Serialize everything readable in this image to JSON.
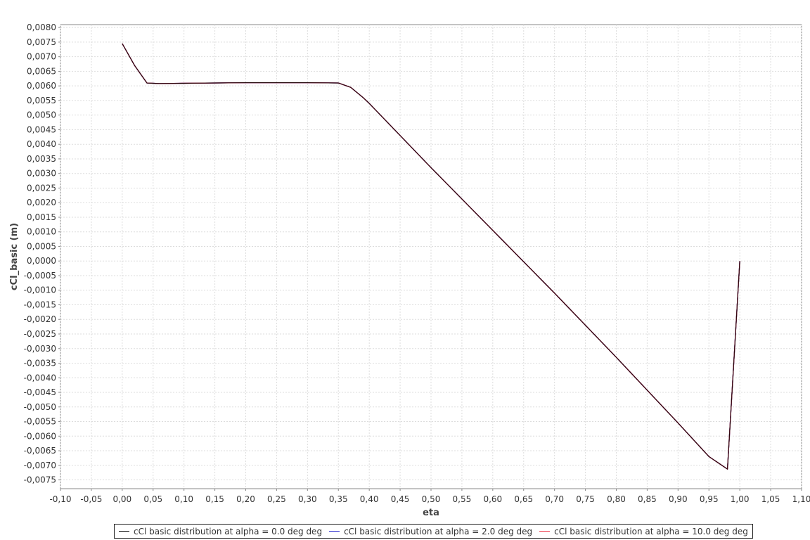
{
  "chart_data": {
    "type": "line",
    "title": "",
    "xlabel": "eta",
    "ylabel": "cCl_basic (m)",
    "xlim": [
      -0.1,
      1.1
    ],
    "ylim": [
      -0.0078,
      0.0081
    ],
    "x_ticks": [
      -0.1,
      -0.05,
      0.0,
      0.05,
      0.1,
      0.15,
      0.2,
      0.25,
      0.3,
      0.35,
      0.4,
      0.45,
      0.5,
      0.55,
      0.6,
      0.65,
      0.7,
      0.75,
      0.8,
      0.85,
      0.9,
      0.95,
      1.0,
      1.05,
      1.1
    ],
    "x_tick_labels": [
      "-0,10",
      "-0,05",
      "0,00",
      "0,05",
      "0,10",
      "0,15",
      "0,20",
      "0,25",
      "0,30",
      "0,35",
      "0,40",
      "0,45",
      "0,50",
      "0,55",
      "0,60",
      "0,65",
      "0,70",
      "0,75",
      "0,80",
      "0,85",
      "0,90",
      "0,95",
      "1,00",
      "1,05",
      "1,10"
    ],
    "y_ticks": [
      0.008,
      0.0075,
      0.007,
      0.0065,
      0.006,
      0.0055,
      0.005,
      0.0045,
      0.004,
      0.0035,
      0.003,
      0.0025,
      0.002,
      0.0015,
      0.001,
      0.0005,
      0.0,
      -0.0005,
      -0.001,
      -0.0015,
      -0.002,
      -0.0025,
      -0.003,
      -0.0035,
      -0.004,
      -0.0045,
      -0.005,
      -0.0055,
      -0.006,
      -0.0065,
      -0.007,
      -0.0075
    ],
    "y_tick_labels": [
      "0,0080",
      "0,0075",
      "0,0070",
      "0,0065",
      "0,0060",
      "0,0055",
      "0,0050",
      "0,0045",
      "0,0040",
      "0,0035",
      "0,0030",
      "0,0025",
      "0,0020",
      "0,0015",
      "0,0010",
      "0,0005",
      "0,0000",
      "-0,0005",
      "-0,0010",
      "-0,0015",
      "-0,0020",
      "-0,0025",
      "-0,0030",
      "-0,0035",
      "-0,0040",
      "-0,0045",
      "-0,0050",
      "-0,0055",
      "-0,0060",
      "-0,0065",
      "-0,0070",
      "-0,0075"
    ],
    "grid": true,
    "legend_position": "bottom",
    "series": [
      {
        "name": "cCl basic distribution at alpha = 0.0 deg deg",
        "color": "#000000",
        "x": [
          0.0,
          0.02,
          0.04,
          0.06,
          0.1,
          0.2,
          0.3,
          0.35,
          0.37,
          0.39,
          0.4,
          0.5,
          0.6,
          0.7,
          0.8,
          0.9,
          0.95,
          0.98,
          1.0
        ],
        "y": [
          0.00745,
          0.0067,
          0.0061,
          0.00608,
          0.00609,
          0.00611,
          0.00611,
          0.0061,
          0.00595,
          0.0056,
          0.0054,
          0.0032,
          0.00105,
          -0.0011,
          -0.0033,
          -0.00555,
          -0.0067,
          -0.00713,
          0.0
        ]
      },
      {
        "name": "cCl basic distribution at alpha = 2.0 deg deg",
        "color": "#2222cc",
        "x": [
          0.0,
          0.02,
          0.04,
          0.06,
          0.1,
          0.2,
          0.3,
          0.35,
          0.37,
          0.39,
          0.4,
          0.5,
          0.6,
          0.7,
          0.8,
          0.9,
          0.95,
          0.98,
          1.0
        ],
        "y": [
          0.00745,
          0.0067,
          0.0061,
          0.00608,
          0.00609,
          0.00611,
          0.00611,
          0.0061,
          0.00595,
          0.0056,
          0.0054,
          0.0032,
          0.00105,
          -0.0011,
          -0.0033,
          -0.00555,
          -0.0067,
          -0.00713,
          0.0
        ]
      },
      {
        "name": "cCl basic distribution at alpha = 10.0 deg deg",
        "color": "#ee3344",
        "x": [
          0.0,
          0.02,
          0.04,
          0.06,
          0.1,
          0.2,
          0.3,
          0.35,
          0.37,
          0.39,
          0.4,
          0.5,
          0.6,
          0.7,
          0.8,
          0.9,
          0.95,
          0.98,
          1.0
        ],
        "y": [
          0.00745,
          0.0067,
          0.0061,
          0.00608,
          0.00609,
          0.00611,
          0.00611,
          0.0061,
          0.00595,
          0.0056,
          0.0054,
          0.0032,
          0.00105,
          -0.0011,
          -0.0033,
          -0.00555,
          -0.0067,
          -0.00713,
          0.0
        ]
      }
    ]
  }
}
